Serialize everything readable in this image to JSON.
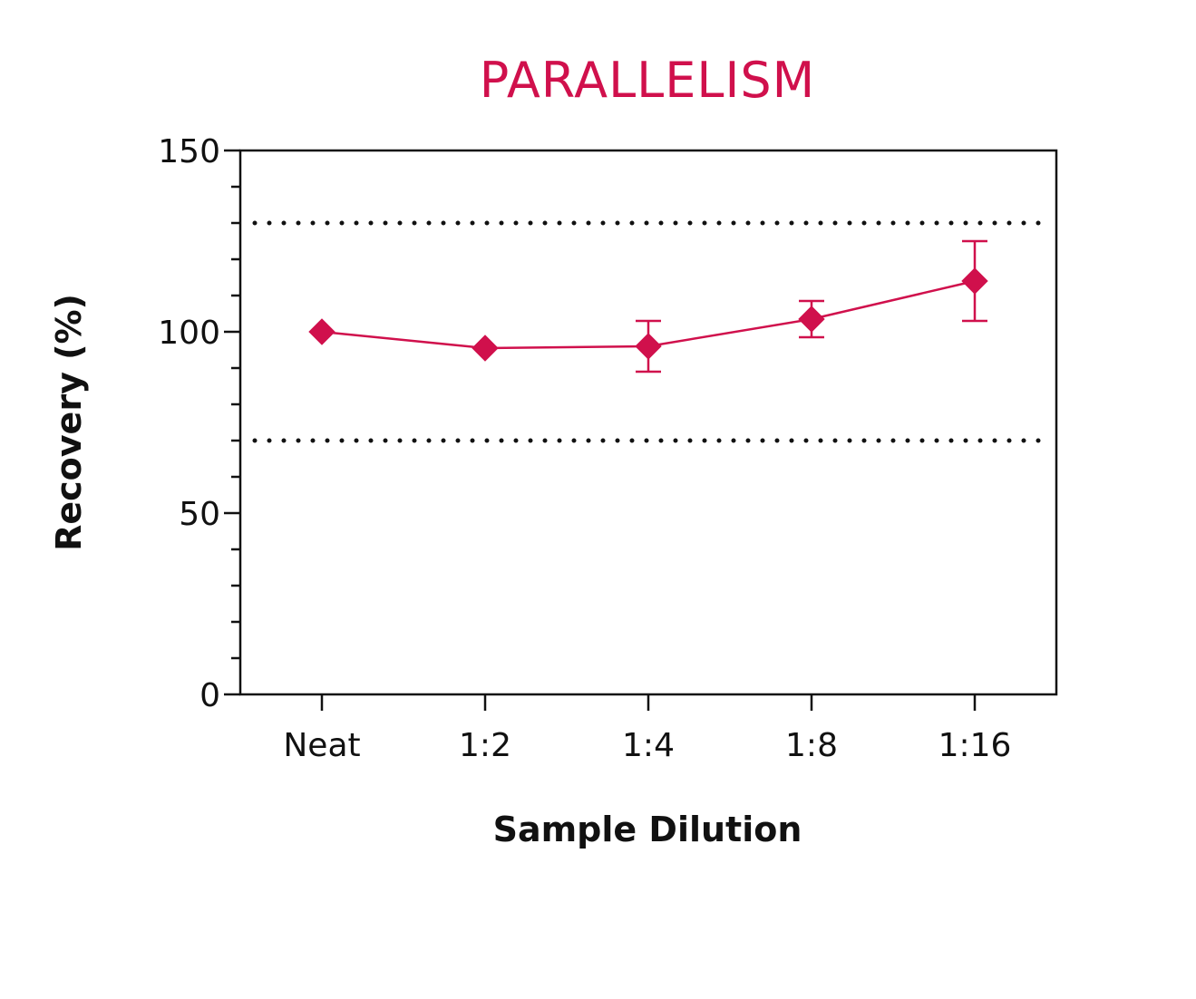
{
  "chart_data": {
    "type": "line",
    "title": "PARALLELISM",
    "xlabel": "Sample Dilution",
    "ylabel": "Recovery (%)",
    "categories": [
      "Neat",
      "1:2",
      "1:4",
      "1:8",
      "1:16"
    ],
    "series": [
      {
        "values": [
          100,
          95.5,
          96,
          103.5,
          114
        ],
        "error": [
          0,
          0,
          7,
          5,
          11
        ]
      }
    ],
    "ylim": [
      0,
      150
    ],
    "y_ticks": [
      "0",
      "50",
      "100",
      "150"
    ],
    "reference_lines": [
      70,
      130
    ],
    "legend": "none",
    "grid": false
  },
  "colors": {
    "accent": "#d0104c",
    "axis": "#111111",
    "reference": "#111111"
  }
}
